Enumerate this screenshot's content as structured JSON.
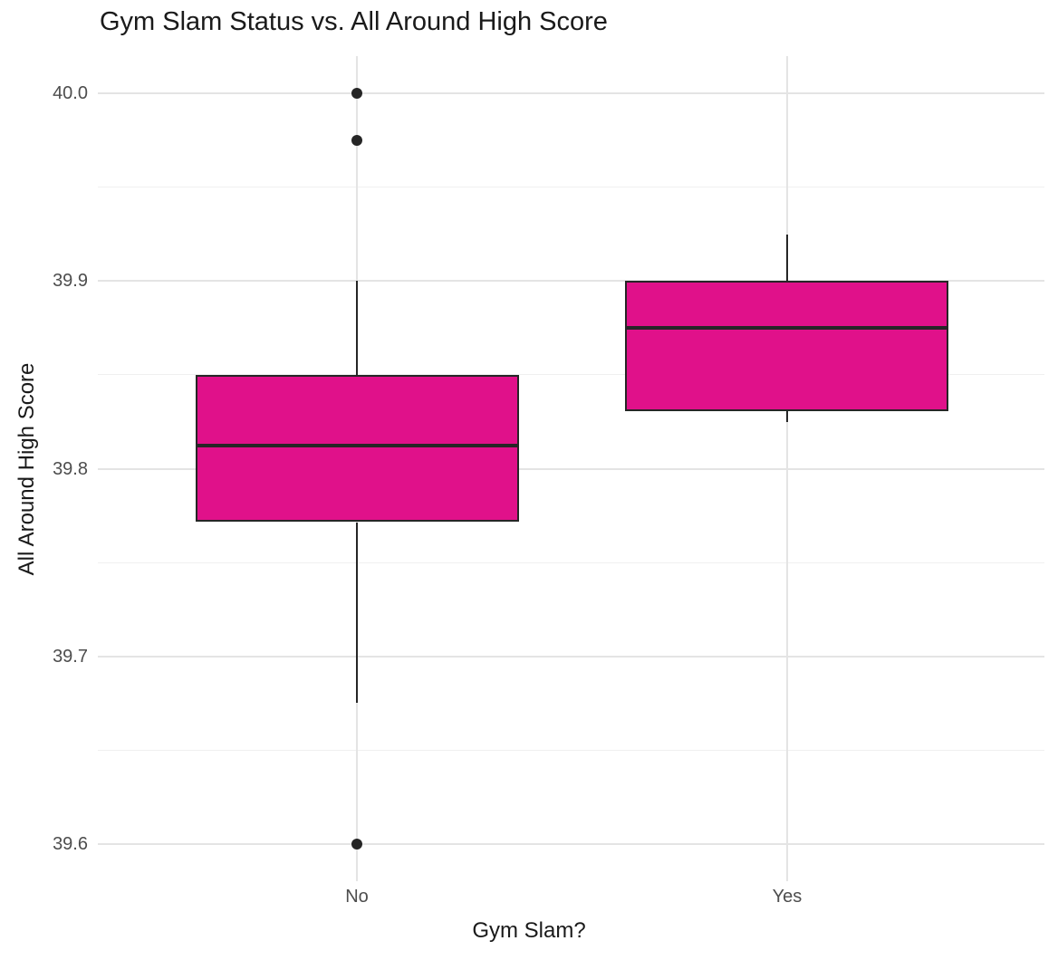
{
  "chart_data": {
    "type": "boxplot",
    "title": "Gym Slam Status vs. All Around High Score",
    "xlabel": "Gym Slam?",
    "ylabel": "All Around High Score",
    "categories": [
      "No",
      "Yes"
    ],
    "ylim": [
      39.58,
      40.02
    ],
    "y_major_ticks": [
      {
        "value": 40.0,
        "label": "40.0"
      },
      {
        "value": 39.9,
        "label": "39.9"
      },
      {
        "value": 39.8,
        "label": "39.8"
      },
      {
        "value": 39.7,
        "label": "39.7"
      },
      {
        "value": 39.6,
        "label": "39.6"
      }
    ],
    "y_minor_ticks": [
      39.95,
      39.85,
      39.75,
      39.65
    ],
    "grid": true,
    "legend_position": "none",
    "series": [
      {
        "category": "No",
        "whisker_low": 39.675,
        "q1": 39.7715,
        "median": 39.8125,
        "q3": 39.85,
        "whisker_high": 39.9,
        "outliers": [
          40.0,
          39.975,
          39.6
        ]
      },
      {
        "category": "Yes",
        "whisker_low": 39.825,
        "q1": 39.8305,
        "median": 39.875,
        "q3": 39.9,
        "whisker_high": 39.925,
        "outliers": []
      }
    ],
    "colors": {
      "box_fill": "#E0118A",
      "box_border": "#262626",
      "median_line": "#262626",
      "whisker": "#262626",
      "outlier_point": "#262626",
      "grid_major": "#E4E4E4",
      "grid_minor": "#F0F0F0",
      "tick_label": "#4D4D4D",
      "title_text": "#1A1A1A",
      "axis_title_text": "#1A1A1A",
      "background": "#FFFFFF"
    }
  }
}
